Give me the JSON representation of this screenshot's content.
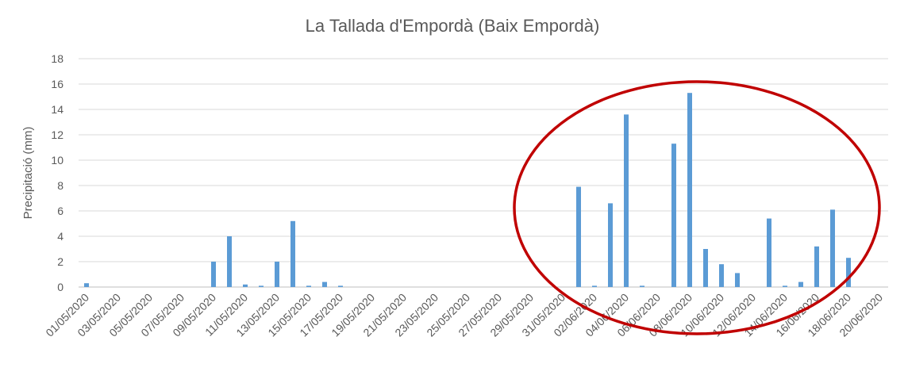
{
  "chart_data": {
    "type": "bar",
    "title": "La Tallada d'Empordà  (Baix Empordà)",
    "xlabel": "",
    "ylabel": "Precipitació (mm)",
    "ylim": [
      0,
      18
    ],
    "yticks": [
      0,
      2,
      4,
      6,
      8,
      10,
      12,
      14,
      16,
      18
    ],
    "grid": true,
    "legend": "none",
    "bar_color": "#5b9bd5",
    "annotation": {
      "shape": "ellipse",
      "color": "#c00000",
      "description": "red ellipse highlighting the June 2020 rainfall"
    },
    "categories": [
      "01/05/2020",
      "02/05/2020",
      "03/05/2020",
      "04/05/2020",
      "05/05/2020",
      "06/05/2020",
      "07/05/2020",
      "08/05/2020",
      "09/05/2020",
      "10/05/2020",
      "11/05/2020",
      "12/05/2020",
      "13/05/2020",
      "14/05/2020",
      "15/05/2020",
      "16/05/2020",
      "17/05/2020",
      "18/05/2020",
      "19/05/2020",
      "20/05/2020",
      "21/05/2020",
      "22/05/2020",
      "23/05/2020",
      "24/05/2020",
      "25/05/2020",
      "26/05/2020",
      "27/05/2020",
      "28/05/2020",
      "29/05/2020",
      "30/05/2020",
      "31/05/2020",
      "01/06/2020",
      "02/06/2020",
      "03/06/2020",
      "04/06/2020",
      "05/06/2020",
      "06/06/2020",
      "07/06/2020",
      "08/06/2020",
      "09/06/2020",
      "10/06/2020",
      "11/06/2020",
      "12/06/2020",
      "13/06/2020",
      "14/06/2020",
      "15/06/2020",
      "16/06/2020",
      "17/06/2020",
      "18/06/2020",
      "19/06/2020",
      "20/06/2020"
    ],
    "tick_labels": [
      "01/05/2020",
      "03/05/2020",
      "05/05/2020",
      "07/05/2020",
      "09/05/2020",
      "11/05/2020",
      "13/05/2020",
      "15/05/2020",
      "17/05/2020",
      "19/05/2020",
      "21/05/2020",
      "23/05/2020",
      "25/05/2020",
      "27/05/2020",
      "29/05/2020",
      "31/05/2020",
      "02/06/2020",
      "04/06/2020",
      "06/06/2020",
      "08/06/2020",
      "10/06/2020",
      "12/06/2020",
      "14/06/2020",
      "16/06/2020",
      "18/06/2020",
      "20/06/2020"
    ],
    "values": [
      0.3,
      0,
      0,
      0,
      0,
      0,
      0,
      0,
      2.0,
      4.0,
      0.2,
      0.1,
      2.0,
      5.2,
      0.1,
      0.4,
      0.1,
      0,
      0,
      0,
      0,
      0,
      0,
      0,
      0,
      0,
      0,
      0,
      0,
      0,
      0,
      7.9,
      0.1,
      6.6,
      13.6,
      0.1,
      0,
      11.3,
      15.3,
      3.0,
      1.8,
      1.1,
      0,
      5.4,
      0.1,
      0.4,
      3.2,
      6.1,
      2.3,
      0,
      0
    ]
  }
}
